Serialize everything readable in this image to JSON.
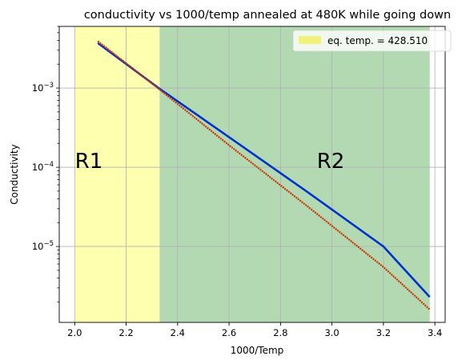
{
  "chart_data": {
    "type": "line",
    "title": "conductivity vs 1000/temp annealed at 480K while going down",
    "xlabel": "1000/Temp",
    "ylabel": "Conductivity",
    "yscale": "log",
    "xlim": [
      1.94,
      3.44
    ],
    "ylim": [
      1.1e-06,
      0.006
    ],
    "grid": true,
    "x_ticks": [
      2.0,
      2.2,
      2.4,
      2.6,
      2.8,
      3.0,
      3.2,
      3.4
    ],
    "x_tick_labels": [
      "2.0",
      "2.2",
      "2.4",
      "2.6",
      "2.8",
      "3.0",
      "3.2",
      "3.4"
    ],
    "y_ticks": [
      1e-05,
      0.0001,
      0.001
    ],
    "y_tick_labels": [
      {
        "base": "10",
        "exp": "−5"
      },
      {
        "base": "10",
        "exp": "−4"
      },
      {
        "base": "10",
        "exp": "−3"
      }
    ],
    "regions": [
      {
        "label": "R1",
        "x_start": 2.0,
        "x_end": 2.33,
        "color": "#ffffb0",
        "label_x": 2.055,
        "label_y": 0.00012
      },
      {
        "label": "R2",
        "x_start": 2.33,
        "x_end": 3.38,
        "color": "#b3d9b3",
        "label_x": 2.995,
        "label_y": 0.00012
      }
    ],
    "series": [
      {
        "color": "#0033cc",
        "x": [
          2.09,
          2.33,
          2.6,
          2.9,
          3.2,
          3.38
        ],
        "y": [
          0.0037,
          0.00098,
          0.00024,
          5e-05,
          1e-05,
          2.3e-06
        ]
      },
      {
        "color": "#cc3300",
        "x": [
          2.09,
          2.33,
          2.6,
          2.9,
          3.2,
          3.38
        ],
        "y": [
          0.0039,
          0.00096,
          0.00019,
          3.3e-05,
          5.5e-06,
          1.6e-06
        ]
      }
    ],
    "legend": {
      "placement": "top-right",
      "entries": [
        {
          "label": "eq. temp. = 428.510",
          "color": "#f2f27a"
        }
      ]
    }
  }
}
